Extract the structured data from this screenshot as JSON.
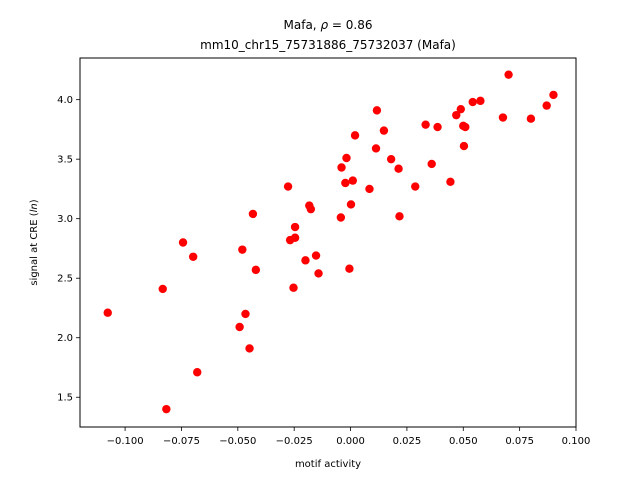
{
  "chart_data": {
    "type": "scatter",
    "title_line1": "Mafa, ",
    "title_rho": "ρ",
    "title_eq": " = 0.86",
    "title_line2": "mm10_chr15_75731886_75732037 (Mafa)",
    "xlabel": "motif activity",
    "ylabel_prefix": "signal at CRE (",
    "ylabel_italic": "ln",
    "ylabel_suffix": ")",
    "xlim": [
      -0.12,
      0.1
    ],
    "ylim": [
      1.25,
      4.35
    ],
    "xticks": [
      -0.1,
      -0.075,
      -0.05,
      -0.025,
      0.0,
      0.025,
      0.05,
      0.075,
      0.1
    ],
    "xtick_labels": [
      "−0.100",
      "−0.075",
      "−0.050",
      "−0.025",
      "0.000",
      "0.025",
      "0.050",
      "0.075",
      "0.100"
    ],
    "yticks": [
      1.5,
      2.0,
      2.5,
      3.0,
      3.5,
      4.0
    ],
    "ytick_labels": [
      "1.5",
      "2.0",
      "2.5",
      "3.0",
      "3.5",
      "4.0"
    ],
    "marker_color": "#ff0000",
    "points": [
      [
        -0.1077,
        2.21
      ],
      [
        -0.0833,
        2.41
      ],
      [
        -0.0817,
        1.4
      ],
      [
        -0.0743,
        2.8
      ],
      [
        -0.068,
        1.71
      ],
      [
        -0.0698,
        2.68
      ],
      [
        -0.0492,
        2.09
      ],
      [
        -0.048,
        2.74
      ],
      [
        -0.0466,
        2.2
      ],
      [
        -0.0448,
        1.91
      ],
      [
        -0.0433,
        3.04
      ],
      [
        -0.042,
        2.57
      ],
      [
        -0.0277,
        3.27
      ],
      [
        -0.0268,
        2.82
      ],
      [
        -0.0253,
        2.42
      ],
      [
        -0.0246,
        2.93
      ],
      [
        -0.0246,
        2.84
      ],
      [
        -0.02,
        2.65
      ],
      [
        -0.0183,
        3.11
      ],
      [
        -0.0176,
        3.08
      ],
      [
        -0.0153,
        2.69
      ],
      [
        -0.0142,
        2.54
      ],
      [
        -0.0043,
        3.01
      ],
      [
        -0.004,
        3.43
      ],
      [
        -0.0023,
        3.3
      ],
      [
        -0.0018,
        3.51
      ],
      [
        -0.0005,
        2.58
      ],
      [
        0.0002,
        3.12
      ],
      [
        0.001,
        3.32
      ],
      [
        0.002,
        3.7
      ],
      [
        0.0084,
        3.25
      ],
      [
        0.0113,
        3.59
      ],
      [
        0.0117,
        3.91
      ],
      [
        0.0148,
        3.74
      ],
      [
        0.018,
        3.5
      ],
      [
        0.0213,
        3.42
      ],
      [
        0.0217,
        3.02
      ],
      [
        0.0287,
        3.27
      ],
      [
        0.0333,
        3.79
      ],
      [
        0.036,
        3.46
      ],
      [
        0.0386,
        3.77
      ],
      [
        0.0443,
        3.31
      ],
      [
        0.0469,
        3.87
      ],
      [
        0.0489,
        3.92
      ],
      [
        0.05,
        3.78
      ],
      [
        0.0503,
        3.61
      ],
      [
        0.0509,
        3.77
      ],
      [
        0.0542,
        3.98
      ],
      [
        0.0576,
        3.99
      ],
      [
        0.0676,
        3.85
      ],
      [
        0.0701,
        4.21
      ],
      [
        0.08,
        3.84
      ],
      [
        0.087,
        3.95
      ],
      [
        0.09,
        4.04
      ]
    ]
  }
}
